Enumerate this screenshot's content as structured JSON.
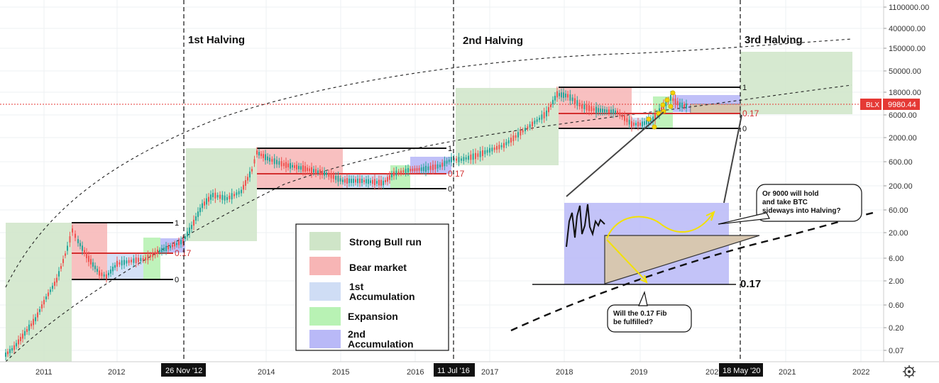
{
  "chart_data": {
    "type": "candlestick",
    "symbol": "BLX",
    "price_label": "9980.44",
    "y_scale": "log",
    "y_ticks": [
      "1100000.00",
      "400000.00",
      "150000.00",
      "50000.00",
      "18000.00",
      "6000.00",
      "2000.00",
      "600.00",
      "200.00",
      "60.00",
      "20.00",
      "6.00",
      "2.00",
      "0.60",
      "0.20",
      "0.07"
    ],
    "x_ticks": [
      "2011",
      "2012",
      "2014",
      "2015",
      "2016",
      "2017",
      "2018",
      "2019",
      "202",
      "2021",
      "2022"
    ],
    "halvings": [
      {
        "title": "1st Halving",
        "date": "26 Nov '12"
      },
      {
        "title": "2nd Halving",
        "date": "11 Jul '16"
      },
      {
        "title": "3rd Halving",
        "date": "18 May '20"
      }
    ],
    "fib_levels": [
      {
        "top": "1",
        "fib": "0.17",
        "bottom": "0"
      },
      {
        "top": "1",
        "fib": "0.17",
        "bottom": "0"
      },
      {
        "top": "1",
        "fib": "0.17",
        "bottom": "0"
      }
    ],
    "legend": [
      {
        "label": "Strong Bull run",
        "color": "#cfe5c8"
      },
      {
        "label": "Bear market",
        "color": "#f7b5b5"
      },
      {
        "label": "1st Accumulation",
        "color": "#cfddf5"
      },
      {
        "label": "Expansion",
        "color": "#b8f2b4"
      },
      {
        "label": "2nd Accumulation",
        "color": "#b9b9f7"
      }
    ],
    "inset_fib_label": "0.17",
    "annotations": [
      "Or 9000 will hold and take BTC sideways into Halving?",
      "Will the 0.17 Fib be fulfilled?"
    ]
  },
  "colors": {
    "bull": "#cfe5c8",
    "bear": "#f7b5b5",
    "acc1": "#cfddf5",
    "exp": "#b8f2b4",
    "acc2": "#b9b9f7",
    "candle_up": "#26a69a",
    "candle_down": "#ef5350",
    "price_line": "#e53935"
  },
  "icons": {
    "settings": "gear-icon"
  }
}
